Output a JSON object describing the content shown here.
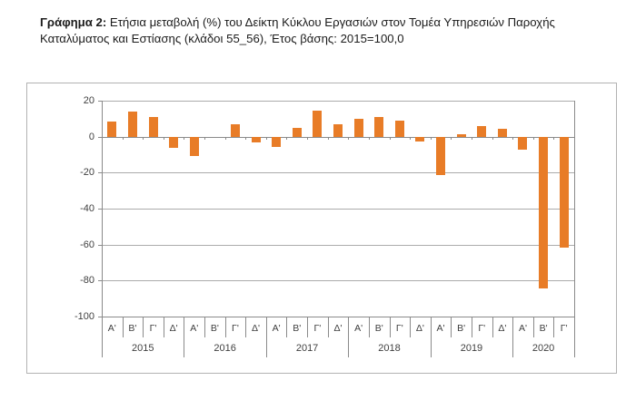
{
  "caption": {
    "prefix": "Γράφημα 2:",
    "line1": " Ετήσια μεταβολή (%) του Δείκτη Κύκλου Εργασιών στον Τομέα Υπηρεσιών Παροχής",
    "line2": "Καταλύματος και Εστίασης (κλάδοι 55_56), Έτος βάσης: 2015=100,0"
  },
  "chart_data": {
    "type": "bar",
    "title": "",
    "xlabel": "",
    "ylabel": "",
    "unit": "%",
    "ylim": [
      -100,
      20
    ],
    "ytick_step": 20,
    "ytick_labels": [
      "20",
      "0",
      "-20",
      "-40",
      "-60",
      "-80",
      "-100"
    ],
    "gridlines": true,
    "legend": "none",
    "bar_color": "#e87c27",
    "grid_color": "#ababab",
    "axis_color": "#8a8a8a",
    "groups": [
      {
        "year": "2015",
        "categories": [
          "Α'",
          "Β'",
          "Γ'",
          "Δ'"
        ],
        "values": [
          8.5,
          14.0,
          11.0,
          -6.0
        ]
      },
      {
        "year": "2016",
        "categories": [
          "Α'",
          "Β'",
          "Γ'",
          "Δ'"
        ],
        "values": [
          -11.0,
          0.0,
          7.0,
          -3.0
        ]
      },
      {
        "year": "2017",
        "categories": [
          "Α'",
          "Β'",
          "Γ'",
          "Δ'"
        ],
        "values": [
          -5.5,
          5.0,
          14.5,
          7.0
        ]
      },
      {
        "year": "2018",
        "categories": [
          "Α'",
          "Β'",
          "Γ'",
          "Δ'"
        ],
        "values": [
          10.0,
          11.0,
          9.0,
          -2.5
        ]
      },
      {
        "year": "2019",
        "categories": [
          "Α'",
          "Β'",
          "Γ'",
          "Δ'"
        ],
        "values": [
          -21.5,
          1.3,
          6.0,
          4.5
        ]
      },
      {
        "year": "2020",
        "categories": [
          "Α'",
          "Β'",
          "Γ'"
        ],
        "values": [
          -7.0,
          -84.5,
          -61.5
        ]
      }
    ]
  }
}
